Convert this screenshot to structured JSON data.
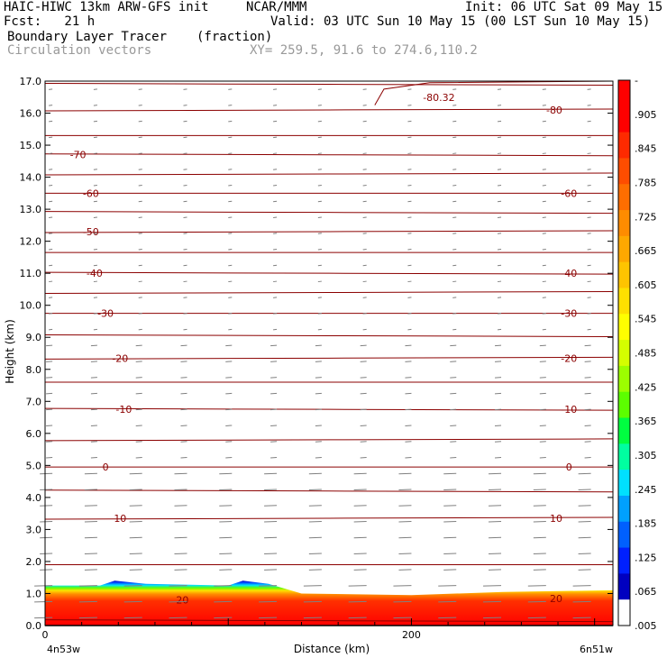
{
  "header": {
    "model": "HAIC-HIWC 13km ARW-GFS init",
    "org": "NCAR/MMM",
    "init": "Init: 06 UTC Sat 09 May 15",
    "fcst": "Fcst:   21 h",
    "valid": "Valid: 03 UTC Sun 10 May 15 (00 LST Sun 10 May 15)",
    "field": "Boundary Layer Tracer",
    "units": "(fraction)",
    "vectors": "Circulation vectors",
    "xy": "XY= 259.5, 91.6 to 274.6,110.2"
  },
  "chart_data": {
    "type": "heatmap",
    "ylabel": "Height (km)",
    "xlabel": "Distance (km)",
    "ylim": [
      0,
      17
    ],
    "yticks": [
      "0.0",
      "1.0",
      "2.0",
      "3.0",
      "4.0",
      "5.0",
      "6.0",
      "7.0",
      "8.0",
      "9.0",
      "10.0",
      "11.0",
      "12.0",
      "13.0",
      "14.0",
      "15.0",
      "16.0",
      "17.0"
    ],
    "xlim": [
      0,
      310
    ],
    "xticks": [
      {
        "value": 0,
        "label": "0"
      },
      {
        "value": 200,
        "label": "200"
      }
    ],
    "x_endpoints": {
      "left": "4n53w",
      "right": "6n51w"
    },
    "colorbar": {
      "labels": [
        "-",
        ".905",
        ".845",
        ".785",
        ".725",
        ".665",
        ".605",
        ".545",
        ".485",
        ".425",
        ".365",
        ".305",
        ".245",
        ".185",
        ".125",
        ".065",
        ".005"
      ],
      "colors": [
        "#ff0000",
        "#ff0000",
        "#ff2a00",
        "#ff4d00",
        "#ff6e00",
        "#ff8c00",
        "#ffa800",
        "#ffc400",
        "#ffe000",
        "#ffff00",
        "#d4ff00",
        "#9cff00",
        "#5cff00",
        "#00ff40",
        "#00ffa0",
        "#00e0ff",
        "#00a0ff",
        "#0060ff",
        "#0020ff",
        "#0000c0",
        "#ffffff"
      ]
    },
    "tracer_surface": [
      {
        "x": 0,
        "top": 1.25
      },
      {
        "x": 30,
        "top": 1.25
      },
      {
        "x": 38,
        "top": 1.4
      },
      {
        "x": 55,
        "top": 1.3
      },
      {
        "x": 100,
        "top": 1.25
      },
      {
        "x": 108,
        "top": 1.4
      },
      {
        "x": 122,
        "top": 1.3
      },
      {
        "x": 140,
        "top": 1.0
      },
      {
        "x": 200,
        "top": 0.95
      },
      {
        "x": 250,
        "top": 1.05
      },
      {
        "x": 310,
        "top": 1.1
      }
    ],
    "isotherms": [
      {
        "label": "-80.32",
        "x": 215,
        "y": 16.5
      },
      {
        "label": "-80",
        "x": 278,
        "y": 16.1
      },
      {
        "label": "-70",
        "x": 18,
        "y": 14.7
      },
      {
        "label": "-60",
        "x": 25,
        "y": 13.5
      },
      {
        "label": "-60",
        "x": 286,
        "y": 13.5
      },
      {
        "label": "-50",
        "x": 25,
        "y": 12.3
      },
      {
        "label": "-40",
        "x": 27,
        "y": 11.0
      },
      {
        "label": "-40",
        "x": 286,
        "y": 11.0
      },
      {
        "label": "-30",
        "x": 33,
        "y": 9.75
      },
      {
        "label": "-30",
        "x": 286,
        "y": 9.75
      },
      {
        "label": "-20",
        "x": 41,
        "y": 8.35
      },
      {
        "label": "-20",
        "x": 286,
        "y": 8.35
      },
      {
        "label": "-10",
        "x": 43,
        "y": 6.75
      },
      {
        "label": "-10",
        "x": 286,
        "y": 6.75
      },
      {
        "label": "0",
        "x": 33,
        "y": 4.95
      },
      {
        "label": "0",
        "x": 286,
        "y": 4.95
      },
      {
        "label": "10",
        "x": 41,
        "y": 3.35
      },
      {
        "label": "10",
        "x": 279,
        "y": 3.35
      },
      {
        "label": "20",
        "x": 75,
        "y": 0.8
      },
      {
        "label": "20",
        "x": 279,
        "y": 0.85
      }
    ],
    "isotherm_levels_km": [
      0.15,
      1.9,
      3.35,
      4.2,
      4.95,
      5.8,
      6.75,
      7.6,
      8.35,
      9.05,
      9.75,
      10.4,
      11.0,
      11.65,
      12.3,
      12.9,
      13.5,
      14.1,
      14.7,
      15.3,
      16.1,
      16.9
    ]
  }
}
